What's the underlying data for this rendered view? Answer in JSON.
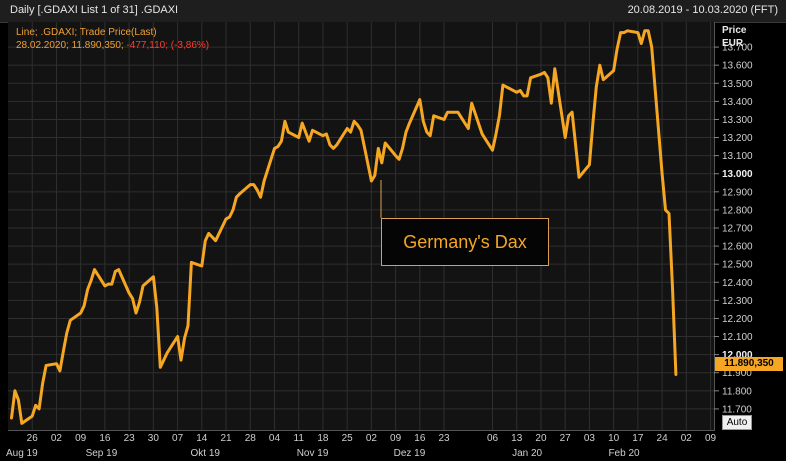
{
  "header": {
    "title": "Daily [.GDAXI List 1 of 31] .GDAXI",
    "date_range": "20.08.2019 - 10.03.2020 (FFT)"
  },
  "info": {
    "line1": "Line; .GDAXI; Trade Price(Last)",
    "line2_main": "28.02.2020; 11.890,350; ",
    "line2_change": "-477,110; (-3,86%)"
  },
  "axis": {
    "price_label": "Price",
    "currency_label": "EUR",
    "last_value_label": "11.890,350",
    "auto_label": "Auto"
  },
  "annotation": "Germany's Dax",
  "colors": {
    "line": "#f5a623",
    "background": "#131313",
    "negative": "#ff3b2f"
  },
  "chart_data": {
    "type": "line",
    "title": "Daily [.GDAXI List 1 of 31] .GDAXI",
    "ylabel": "Price EUR",
    "ylim": [
      11600,
      13800
    ],
    "grid": true,
    "legend": "none",
    "yticks": [
      {
        "v": 11700,
        "label": "11.700"
      },
      {
        "v": 11800,
        "label": "11.800"
      },
      {
        "v": 11900,
        "label": "11.900"
      },
      {
        "v": 12000,
        "label": "12.000",
        "bold": true
      },
      {
        "v": 12100,
        "label": "12.100"
      },
      {
        "v": 12200,
        "label": "12.200"
      },
      {
        "v": 12300,
        "label": "12.300"
      },
      {
        "v": 12400,
        "label": "12.400"
      },
      {
        "v": 12500,
        "label": "12.500"
      },
      {
        "v": 12600,
        "label": "12.600"
      },
      {
        "v": 12700,
        "label": "12.700"
      },
      {
        "v": 12800,
        "label": "12.800"
      },
      {
        "v": 12900,
        "label": "12.900"
      },
      {
        "v": 13000,
        "label": "13.000",
        "bold": true
      },
      {
        "v": 13100,
        "label": "13.100"
      },
      {
        "v": 13200,
        "label": "13.200"
      },
      {
        "v": 13300,
        "label": "13.300"
      },
      {
        "v": 13400,
        "label": "13.400"
      },
      {
        "v": 13500,
        "label": "13.500"
      },
      {
        "v": 13600,
        "label": "13.600"
      },
      {
        "v": 13700,
        "label": "13.700"
      }
    ],
    "xticks": [
      {
        "d": "2019-08-26",
        "label": "26"
      },
      {
        "d": "2019-09-02",
        "label": "02"
      },
      {
        "d": "2019-09-09",
        "label": "09"
      },
      {
        "d": "2019-09-16",
        "label": "16"
      },
      {
        "d": "2019-09-23",
        "label": "23"
      },
      {
        "d": "2019-09-30",
        "label": "30"
      },
      {
        "d": "2019-10-07",
        "label": "07"
      },
      {
        "d": "2019-10-14",
        "label": "14"
      },
      {
        "d": "2019-10-21",
        "label": "21"
      },
      {
        "d": "2019-10-28",
        "label": "28"
      },
      {
        "d": "2019-11-04",
        "label": "04"
      },
      {
        "d": "2019-11-11",
        "label": "11"
      },
      {
        "d": "2019-11-18",
        "label": "18"
      },
      {
        "d": "2019-11-25",
        "label": "25"
      },
      {
        "d": "2019-12-02",
        "label": "02"
      },
      {
        "d": "2019-12-09",
        "label": "09"
      },
      {
        "d": "2019-12-16",
        "label": "16"
      },
      {
        "d": "2019-12-23",
        "label": "23"
      },
      {
        "d": "2020-01-06",
        "label": "06"
      },
      {
        "d": "2020-01-13",
        "label": "13"
      },
      {
        "d": "2020-01-20",
        "label": "20"
      },
      {
        "d": "2020-01-27",
        "label": "27"
      },
      {
        "d": "2020-02-03",
        "label": "03"
      },
      {
        "d": "2020-02-10",
        "label": "10"
      },
      {
        "d": "2020-02-17",
        "label": "17"
      },
      {
        "d": "2020-02-24",
        "label": "24"
      },
      {
        "d": "2020-03-02",
        "label": "02"
      },
      {
        "d": "2020-03-09",
        "label": "09"
      }
    ],
    "months": [
      {
        "d": "2019-08-23",
        "label": "Aug 19"
      },
      {
        "d": "2019-09-15",
        "label": "Sep 19"
      },
      {
        "d": "2019-10-15",
        "label": "Okt 19"
      },
      {
        "d": "2019-11-15",
        "label": "Nov 19"
      },
      {
        "d": "2019-12-13",
        "label": "Dez 19"
      },
      {
        "d": "2020-01-16",
        "label": "Jan 20"
      },
      {
        "d": "2020-02-13",
        "label": "Feb 20"
      }
    ],
    "series": [
      {
        "points": [
          [
            "2019-08-20",
            11650
          ],
          [
            "2019-08-21",
            11800
          ],
          [
            "2019-08-22",
            11750
          ],
          [
            "2019-08-23",
            11620
          ],
          [
            "2019-08-26",
            11660
          ],
          [
            "2019-08-27",
            11720
          ],
          [
            "2019-08-28",
            11700
          ],
          [
            "2019-08-29",
            11840
          ],
          [
            "2019-08-30",
            11940
          ],
          [
            "2019-09-02",
            11950
          ],
          [
            "2019-09-03",
            11910
          ],
          [
            "2019-09-04",
            12020
          ],
          [
            "2019-09-05",
            12120
          ],
          [
            "2019-09-06",
            12190
          ],
          [
            "2019-09-09",
            12230
          ],
          [
            "2019-09-10",
            12270
          ],
          [
            "2019-09-11",
            12360
          ],
          [
            "2019-09-12",
            12410
          ],
          [
            "2019-09-13",
            12470
          ],
          [
            "2019-09-16",
            12380
          ],
          [
            "2019-09-17",
            12390
          ],
          [
            "2019-09-18",
            12390
          ],
          [
            "2019-09-19",
            12460
          ],
          [
            "2019-09-20",
            12470
          ],
          [
            "2019-09-23",
            12340
          ],
          [
            "2019-09-24",
            12310
          ],
          [
            "2019-09-25",
            12230
          ],
          [
            "2019-09-26",
            12290
          ],
          [
            "2019-09-27",
            12380
          ],
          [
            "2019-09-30",
            12430
          ],
          [
            "2019-10-01",
            12260
          ],
          [
            "2019-10-02",
            11930
          ],
          [
            "2019-10-04",
            12010
          ],
          [
            "2019-10-07",
            12100
          ],
          [
            "2019-10-08",
            11970
          ],
          [
            "2019-10-09",
            12090
          ],
          [
            "2019-10-10",
            12160
          ],
          [
            "2019-10-11",
            12510
          ],
          [
            "2019-10-14",
            12490
          ],
          [
            "2019-10-15",
            12630
          ],
          [
            "2019-10-16",
            12670
          ],
          [
            "2019-10-17",
            12650
          ],
          [
            "2019-10-18",
            12630
          ],
          [
            "2019-10-21",
            12750
          ],
          [
            "2019-10-22",
            12760
          ],
          [
            "2019-10-23",
            12800
          ],
          [
            "2019-10-24",
            12870
          ],
          [
            "2019-10-25",
            12890
          ],
          [
            "2019-10-28",
            12940
          ],
          [
            "2019-10-29",
            12940
          ],
          [
            "2019-10-30",
            12910
          ],
          [
            "2019-10-31",
            12870
          ],
          [
            "2019-11-01",
            12960
          ],
          [
            "2019-11-04",
            13140
          ],
          [
            "2019-11-05",
            13150
          ],
          [
            "2019-11-06",
            13180
          ],
          [
            "2019-11-07",
            13290
          ],
          [
            "2019-11-08",
            13230
          ],
          [
            "2019-11-11",
            13200
          ],
          [
            "2019-11-12",
            13280
          ],
          [
            "2019-11-13",
            13230
          ],
          [
            "2019-11-14",
            13180
          ],
          [
            "2019-11-15",
            13240
          ],
          [
            "2019-11-18",
            13210
          ],
          [
            "2019-11-19",
            13220
          ],
          [
            "2019-11-20",
            13160
          ],
          [
            "2019-11-21",
            13140
          ],
          [
            "2019-11-22",
            13160
          ],
          [
            "2019-11-25",
            13250
          ],
          [
            "2019-11-26",
            13230
          ],
          [
            "2019-11-27",
            13290
          ],
          [
            "2019-11-28",
            13270
          ],
          [
            "2019-11-29",
            13240
          ],
          [
            "2019-12-02",
            12960
          ],
          [
            "2019-12-03",
            12990
          ],
          [
            "2019-12-04",
            13140
          ],
          [
            "2019-12-05",
            13060
          ],
          [
            "2019-12-06",
            13170
          ],
          [
            "2019-12-09",
            13100
          ],
          [
            "2019-12-10",
            13080
          ],
          [
            "2019-12-11",
            13140
          ],
          [
            "2019-12-12",
            13230
          ],
          [
            "2019-12-13",
            13280
          ],
          [
            "2019-12-16",
            13410
          ],
          [
            "2019-12-17",
            13290
          ],
          [
            "2019-12-18",
            13230
          ],
          [
            "2019-12-19",
            13210
          ],
          [
            "2019-12-20",
            13320
          ],
          [
            "2019-12-23",
            13300
          ],
          [
            "2019-12-24",
            13340
          ],
          [
            "2019-12-27",
            13340
          ],
          [
            "2019-12-30",
            13250
          ],
          [
            "2019-12-31",
            13390
          ],
          [
            "2020-01-03",
            13220
          ],
          [
            "2020-01-06",
            13130
          ],
          [
            "2020-01-07",
            13220
          ],
          [
            "2020-01-08",
            13320
          ],
          [
            "2020-01-09",
            13490
          ],
          [
            "2020-01-10",
            13480
          ],
          [
            "2020-01-13",
            13450
          ],
          [
            "2020-01-14",
            13460
          ],
          [
            "2020-01-15",
            13430
          ],
          [
            "2020-01-16",
            13430
          ],
          [
            "2020-01-17",
            13530
          ],
          [
            "2020-01-20",
            13550
          ],
          [
            "2020-01-21",
            13560
          ],
          [
            "2020-01-22",
            13530
          ],
          [
            "2020-01-23",
            13390
          ],
          [
            "2020-01-24",
            13580
          ],
          [
            "2020-01-27",
            13200
          ],
          [
            "2020-01-28",
            13320
          ],
          [
            "2020-01-29",
            13340
          ],
          [
            "2020-01-30",
            13160
          ],
          [
            "2020-01-31",
            12980
          ],
          [
            "2020-02-03",
            13050
          ],
          [
            "2020-02-04",
            13280
          ],
          [
            "2020-02-05",
            13480
          ],
          [
            "2020-02-06",
            13600
          ],
          [
            "2020-02-07",
            13520
          ],
          [
            "2020-02-10",
            13570
          ],
          [
            "2020-02-11",
            13690
          ],
          [
            "2020-02-12",
            13780
          ],
          [
            "2020-02-13",
            13780
          ],
          [
            "2020-02-14",
            13790
          ],
          [
            "2020-02-17",
            13780
          ],
          [
            "2020-02-18",
            13720
          ],
          [
            "2020-02-19",
            13790
          ],
          [
            "2020-02-20",
            13790
          ],
          [
            "2020-02-21",
            13700
          ],
          [
            "2020-02-24",
            13000
          ],
          [
            "2020-02-25",
            12800
          ],
          [
            "2020-02-26",
            12780
          ],
          [
            "2020-02-27",
            12370
          ],
          [
            "2020-02-28",
            11890
          ]
        ]
      }
    ]
  }
}
